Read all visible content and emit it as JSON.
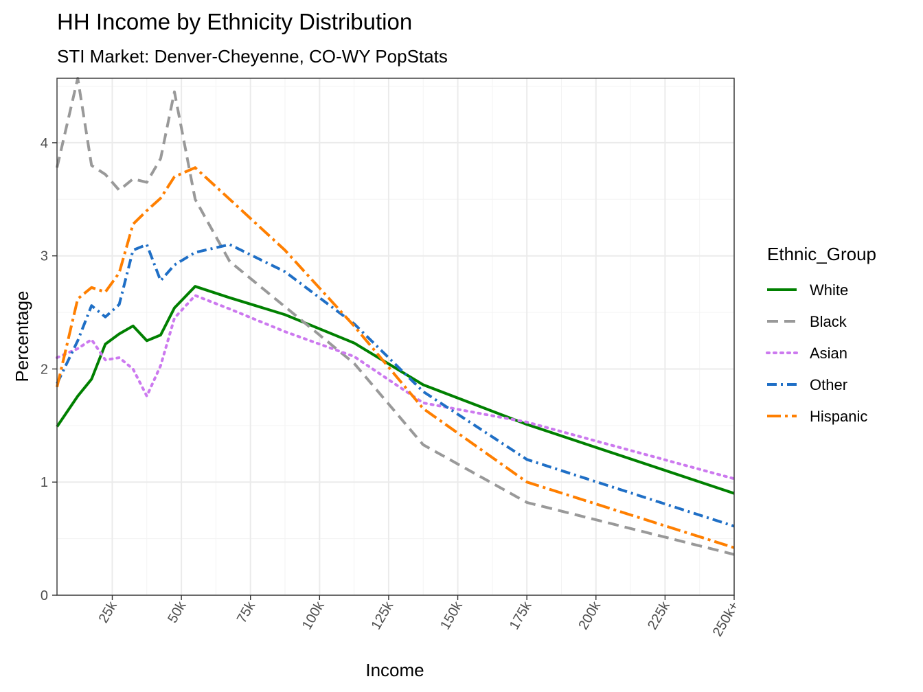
{
  "chart_data": {
    "type": "line",
    "title": "HH Income by Ethnicity Distribution",
    "subtitle": "STI Market: Denver-Cheyenne, CO-WY PopStats",
    "xlabel": "Income",
    "ylabel": "Percentage",
    "xlim": [
      5000,
      250000
    ],
    "ylim": [
      0,
      4.57
    ],
    "x_ticks": [
      {
        "value": 25000,
        "label": "25k"
      },
      {
        "value": 50000,
        "label": "50k"
      },
      {
        "value": 75000,
        "label": "75k"
      },
      {
        "value": 100000,
        "label": "100k"
      },
      {
        "value": 125000,
        "label": "125k"
      },
      {
        "value": 150000,
        "label": "150k"
      },
      {
        "value": 175000,
        "label": "175k"
      },
      {
        "value": 200000,
        "label": "200k"
      },
      {
        "value": 225000,
        "label": "225k"
      },
      {
        "value": 250000,
        "label": "250k+"
      }
    ],
    "y_ticks": [
      0,
      1,
      2,
      3,
      4
    ],
    "grid": true,
    "legend_title": "Ethnic_Group",
    "legend_position": "right",
    "x": [
      5000,
      12500,
      17500,
      22500,
      27500,
      32500,
      37500,
      42500,
      47500,
      55000,
      67500,
      87500,
      112500,
      137500,
      175000,
      250000
    ],
    "series": [
      {
        "name": "White",
        "color": "#008000",
        "dash": "solid",
        "values": [
          1.49,
          1.76,
          1.91,
          2.22,
          2.31,
          2.38,
          2.25,
          2.3,
          2.54,
          2.73,
          2.63,
          2.48,
          2.23,
          1.86,
          1.51,
          0.9
        ]
      },
      {
        "name": "Black",
        "color": "#999999",
        "dash": "dashed",
        "values": [
          3.78,
          4.57,
          3.8,
          3.72,
          3.58,
          3.68,
          3.65,
          3.86,
          4.45,
          3.5,
          2.95,
          2.55,
          2.05,
          1.33,
          0.82,
          0.36
        ]
      },
      {
        "name": "Asian",
        "color": "#cc79ef",
        "dash": "dotted",
        "values": [
          2.1,
          2.18,
          2.26,
          2.08,
          2.1,
          2.0,
          1.76,
          2.03,
          2.45,
          2.65,
          2.53,
          2.33,
          2.11,
          1.7,
          1.53,
          1.03
        ]
      },
      {
        "name": "Other",
        "color": "#1f6fc6",
        "dash": "dotdash",
        "values": [
          1.87,
          2.25,
          2.56,
          2.46,
          2.57,
          3.05,
          3.1,
          2.78,
          2.92,
          3.03,
          3.1,
          2.86,
          2.4,
          1.8,
          1.2,
          0.61
        ]
      },
      {
        "name": "Hispanic",
        "color": "#ff7f00",
        "dash": "longdash-dot",
        "values": [
          1.84,
          2.62,
          2.72,
          2.68,
          2.85,
          3.28,
          3.4,
          3.51,
          3.7,
          3.78,
          3.5,
          3.05,
          2.38,
          1.65,
          1.0,
          0.42
        ]
      }
    ]
  }
}
